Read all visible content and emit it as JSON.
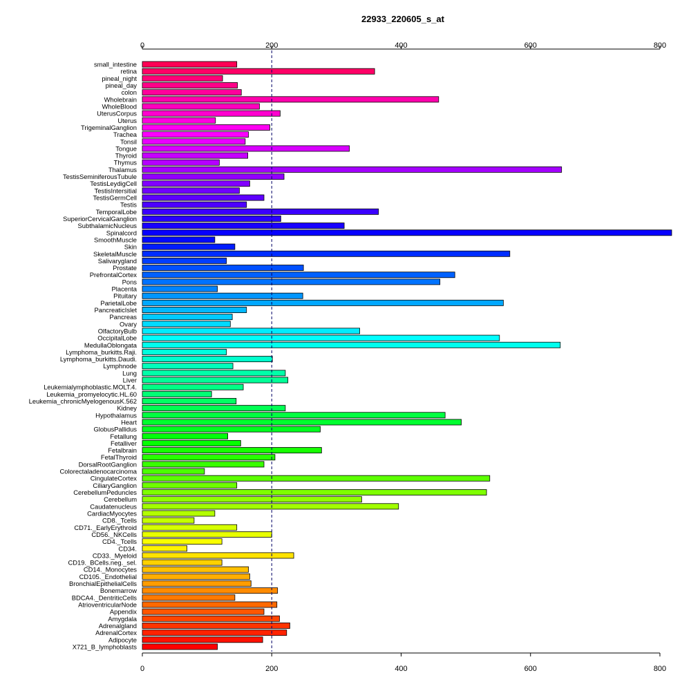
{
  "chart_data": {
    "type": "bar",
    "orientation": "horizontal",
    "title": "22933_220605_s_at",
    "xlim": [
      0,
      800
    ],
    "xticks": [
      0,
      200,
      400,
      600,
      800
    ],
    "reference_line": 200,
    "grid": false,
    "categories": [
      "small_intestine",
      "retina",
      "pineal_night",
      "pineal_day",
      "colon",
      "Wholebrain",
      "WholeBlood",
      "UterusCorpus",
      "Uterus",
      "TrigeminalGanglion",
      "Trachea",
      "Tonsil",
      "Tongue",
      "Thyroid",
      "Thymus",
      "Thalamus",
      "TestisSeminiferousTubule",
      "TestisLeydigCell",
      "TestisIntersitial",
      "TestisGermCell",
      "Testis",
      "TemporalLobe",
      "SuperiorCervicalGanglion",
      "SubthalamicNucleus",
      "Spinalcord",
      "SmoothMuscle",
      "Skin",
      "SkeletalMuscle",
      "Salivarygland",
      "Prostate",
      "PrefrontalCortex",
      "Pons",
      "Placenta",
      "Pituitary",
      "ParietalLobe",
      "PancreaticIslet",
      "Pancreas",
      "Ovary",
      "OlfactoryBulb",
      "OccipitalLobe",
      "MedullaOblongata",
      "Lymphoma_burkitts.Raji.",
      "Lymphoma_burkitts.Daudi.",
      "Lymphnode",
      "Lung",
      "Liver",
      "Leukemialymphoblastic.MOLT.4.",
      "Leukemia_promyelocytic.HL.60",
      "Leukemia_chronicMyelogenousK.562",
      "Kidney",
      "Hypothalamus",
      "Heart",
      "GlobusPallidus",
      "Fetallung",
      "Fetalliver",
      "Fetalbrain",
      "FetalThyroid",
      "DorsalRootGanglion",
      "Colorectaladenocarcinoma",
      "CingulateCortex",
      "CiliaryGanglion",
      "CerebellumPeduncles",
      "Cerebellum",
      "Caudatenucleus",
      "CardiacMyocytes",
      "CD8._Tcells",
      "CD71._EarlyErythroid",
      "CD56._NKCells",
      "CD4._Tcells",
      "CD34.",
      "CD33._Myeloid",
      "CD19._BCells.neg._sel.",
      "CD14._Monocytes",
      "CD105._Endothelial",
      "BronchialEpithelialCells",
      "Bonemarrow",
      "BDCA4._DentriticCells",
      "AtrioventricularNode",
      "Appendix",
      "Amygdala",
      "Adrenalgland",
      "AdrenalCortex",
      "Adipocyte",
      "X721_B_lymphoblasts"
    ],
    "values": [
      146,
      359,
      124,
      147,
      153,
      458,
      181,
      213,
      113,
      197,
      164,
      159,
      320,
      163,
      119,
      648,
      219,
      166,
      150,
      188,
      161,
      365,
      214,
      312,
      822,
      112,
      143,
      568,
      130,
      249,
      483,
      460,
      116,
      248,
      558,
      161,
      139,
      136,
      336,
      552,
      646,
      130,
      201,
      140,
      221,
      225,
      156,
      107,
      145,
      221,
      468,
      493,
      275,
      132,
      152,
      277,
      205,
      188,
      96,
      537,
      146,
      532,
      339,
      396,
      112,
      80,
      146,
      200,
      123,
      69,
      234,
      123,
      164,
      166,
      168,
      209,
      143,
      208,
      188,
      212,
      228,
      223,
      186,
      116
    ]
  }
}
